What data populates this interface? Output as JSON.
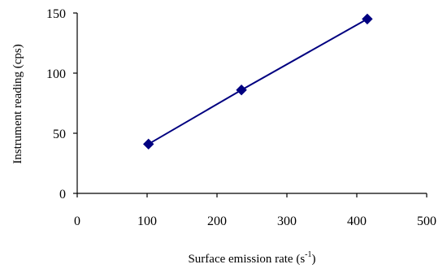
{
  "chart_data": {
    "type": "line",
    "title": "",
    "xlabel": "Surface emission rate (s",
    "xlabel_sup": "-1",
    "xlabel_close": ")",
    "ylabel": "Instrument reading (cps)",
    "xlim": [
      0,
      500
    ],
    "ylim": [
      0,
      150
    ],
    "xticks": [
      0,
      100,
      200,
      300,
      400,
      500
    ],
    "yticks": [
      0,
      50,
      100,
      150
    ],
    "grid": false,
    "legend": "none",
    "series": [
      {
        "x": [
          102,
          235,
          415
        ],
        "y": [
          41,
          86,
          145
        ],
        "color": "#000080",
        "marker": "diamond"
      }
    ]
  }
}
